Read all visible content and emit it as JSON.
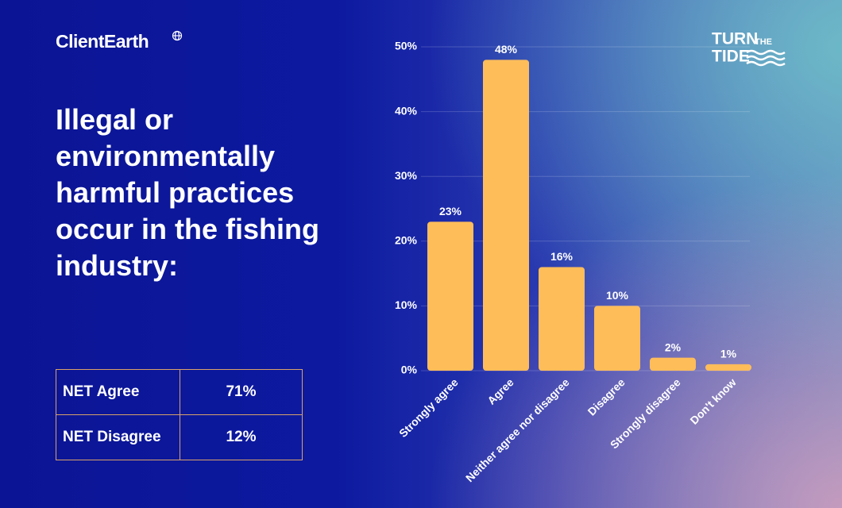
{
  "brand": "ClientEarth",
  "logo": {
    "top": "TURN",
    "small": "THE",
    "bottom": "TIDE"
  },
  "table": {
    "rows": [
      [
        "NET Agree",
        "71%"
      ],
      [
        "NET Disagree",
        "12%"
      ]
    ]
  },
  "chart_data": {
    "type": "bar",
    "title": "Illegal or environmentally harmful practices occur in the fishing industry:",
    "categories": [
      "Strongly agree",
      "Agree",
      "Neither agree nor disagree",
      "Disagree",
      "Strongly disagree",
      "Don't know"
    ],
    "values": [
      23,
      48,
      16,
      10,
      2,
      1
    ],
    "value_labels": [
      "23%",
      "48%",
      "16%",
      "10%",
      "2%",
      "1%"
    ],
    "color": "#ffbd5a",
    "ylim": [
      0,
      50
    ],
    "yticks": [
      {
        "value": 0,
        "label": "0%"
      },
      {
        "value": 10,
        "label": "10%"
      },
      {
        "value": 20,
        "label": "20%"
      },
      {
        "value": 30,
        "label": "30%"
      },
      {
        "value": 40,
        "label": "40%"
      },
      {
        "value": 50,
        "label": "50%"
      }
    ],
    "grid": true
  }
}
